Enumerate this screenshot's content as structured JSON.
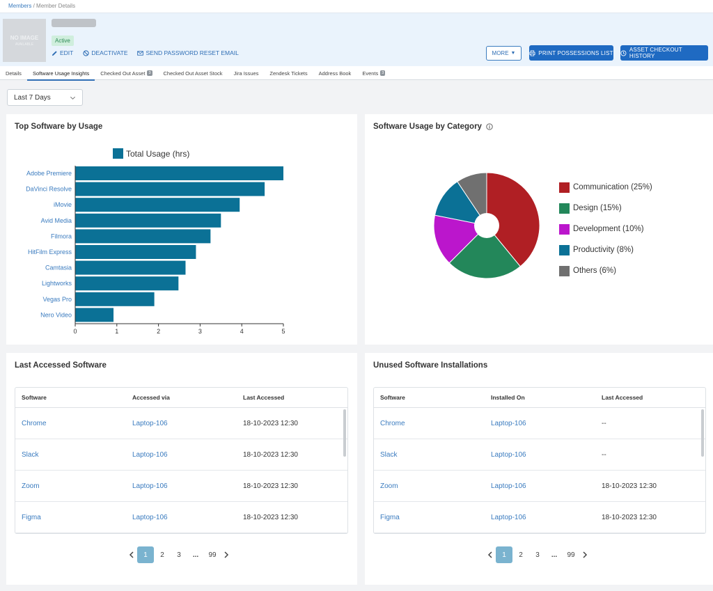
{
  "breadcrumb": {
    "root": "Members",
    "separator": "/",
    "current": "Member Details"
  },
  "profile": {
    "avatar_text": "NO IMAGE",
    "avatar_subtext": "AVAILABLE",
    "status": "Active",
    "actions": {
      "edit": "EDIT",
      "deactivate": "DEACTIVATE",
      "reset": "SEND PASSWORD RESET EMAIL"
    }
  },
  "buttons": {
    "more": "MORE",
    "print": "PRINT POSSESSIONS LIST",
    "history": "ASSET CHECKOUT HISTORY"
  },
  "tabs": [
    {
      "label": "Details",
      "badge": ""
    },
    {
      "label": "Software Usage Insights",
      "badge": ""
    },
    {
      "label": "Checked Out Asset",
      "badge": "3"
    },
    {
      "label": "Checked Out Asset Stock",
      "badge": ""
    },
    {
      "label": "Jira Issues",
      "badge": ""
    },
    {
      "label": "Zendesk Tickets",
      "badge": ""
    },
    {
      "label": "Address Book",
      "badge": ""
    },
    {
      "label": "Events",
      "badge": "3"
    }
  ],
  "active_tab": "Software Usage Insights",
  "filter": {
    "range": "Last 7 Days"
  },
  "bar_card": {
    "title": "Top Software by Usage"
  },
  "pie_card": {
    "title": "Software Usage by Category"
  },
  "chart_data": [
    {
      "type": "bar",
      "orientation": "horizontal",
      "title": "Top Software by Usage",
      "categories": [
        "Adobe Premiere",
        "DaVinci Resolve",
        "iMovie",
        "Avid Media",
        "Filmora",
        "HitFilm Express",
        "Camtasia",
        "Lightworks",
        "Vegas Pro",
        "Nero Video"
      ],
      "series": [
        {
          "name": "Total Usage (hrs)",
          "values": [
            5.0,
            4.55,
            3.95,
            3.5,
            3.25,
            2.9,
            2.65,
            2.48,
            1.9,
            0.92
          ]
        }
      ],
      "xlim": [
        0,
        5
      ],
      "xticks": [
        "0",
        "1",
        "2",
        "3",
        "4",
        "5"
      ],
      "color": "#0b7196",
      "legend": "top"
    },
    {
      "type": "pie",
      "title": "Software Usage by Category",
      "donut": true,
      "legend": "right",
      "slices": [
        {
          "label": "Communication (25%)",
          "value": 25,
          "color": "#b01f24"
        },
        {
          "label": "Design (15%)",
          "value": 15,
          "color": "#23875a"
        },
        {
          "label": "Development (10%)",
          "value": 10,
          "color": "#bb16cc"
        },
        {
          "label": "Productivity (8%)",
          "value": 8,
          "color": "#0b7196"
        },
        {
          "label": "Others (6%)",
          "value": 6,
          "color": "#707070"
        }
      ]
    }
  ],
  "last_accessed": {
    "title": "Last Accessed Software",
    "headers": [
      "Software",
      "Accessed via",
      "Last Accessed"
    ],
    "rows": [
      [
        "Chrome",
        "Laptop-106",
        "18-10-2023 12:30"
      ],
      [
        "Slack",
        "Laptop-106",
        "18-10-2023 12:30"
      ],
      [
        "Zoom",
        "Laptop-106",
        "18-10-2023 12:30"
      ],
      [
        "Figma",
        "Laptop-106",
        "18-10-2023 12:30"
      ]
    ]
  },
  "unused": {
    "title": "Unused Software Installations",
    "headers": [
      "Software",
      "Installed On",
      "Last Accessed"
    ],
    "rows": [
      [
        "Chrome",
        "Laptop-106",
        "--"
      ],
      [
        "Slack",
        "Laptop-106",
        "--"
      ],
      [
        "Zoom",
        "Laptop-106",
        "18-10-2023 12:30"
      ],
      [
        "Figma",
        "Laptop-106",
        "18-10-2023 12:30"
      ]
    ]
  },
  "pagination": {
    "pages": [
      "1",
      "2",
      "3"
    ],
    "ellipsis": "...",
    "last": "99",
    "current": "1"
  }
}
